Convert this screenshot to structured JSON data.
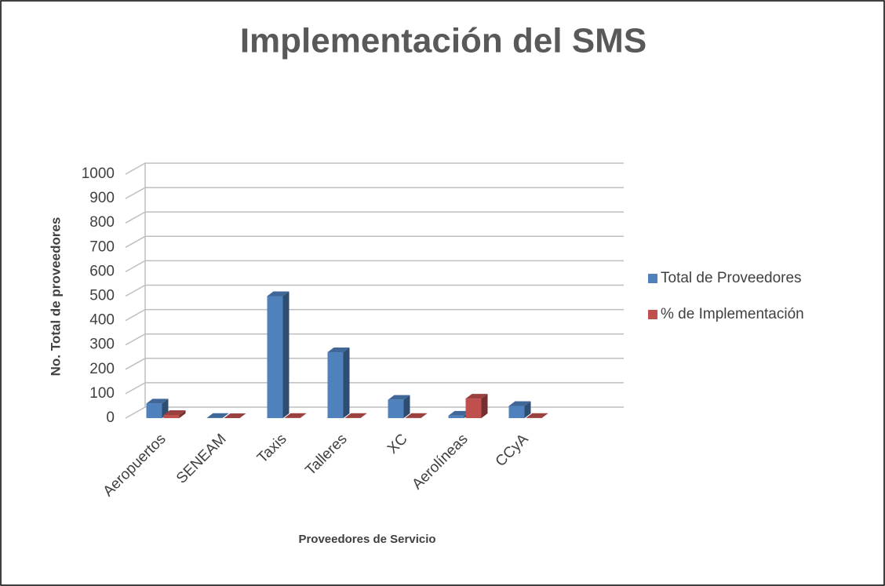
{
  "chart_data": {
    "type": "bar",
    "title": "Implementación del SMS",
    "x_label": "Proveedores de Servicio",
    "y_label": "No. Total de proveedores",
    "categories": [
      "Aeropuertos",
      "SENEAM",
      "Taxis",
      "Talleres",
      "XC",
      "Aerolíneas",
      "CCyA"
    ],
    "series": [
      {
        "name": "Total de Proveedores",
        "color": "#4f81bd",
        "values": [
          60,
          1,
          500,
          270,
          75,
          10,
          50
        ]
      },
      {
        "name": "% de Implementación",
        "color": "#c0504d",
        "values": [
          13,
          0,
          1,
          1,
          1,
          80,
          1
        ]
      }
    ],
    "ylim": [
      0,
      1000
    ],
    "yticks": [
      0,
      100,
      200,
      300,
      400,
      500,
      600,
      700,
      800,
      900,
      1000
    ],
    "grid": true,
    "legend": "right"
  }
}
